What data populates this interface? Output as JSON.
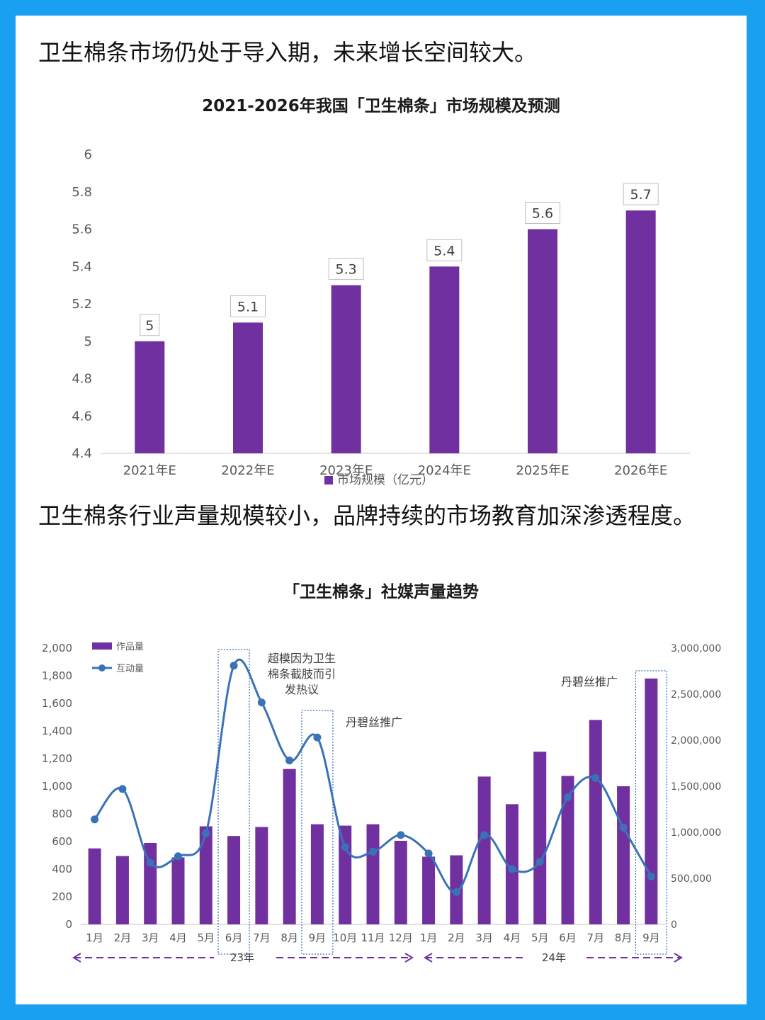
{
  "section1": {
    "heading": "卫生棉条市场仍处于导入期，未来增长空间较大。"
  },
  "section2": {
    "heading": "卫生棉条行业声量规模较小，品牌持续的市场教育加深渗透程度。"
  },
  "colors": {
    "bar": "#7030a0",
    "line": "#3a72b8",
    "frame": "#1aa0f0",
    "highlight": "#3a72b8"
  },
  "chart_data": [
    {
      "type": "bar",
      "title": "2021-2026年我国「卫生棉条」市场规模及预测",
      "categories": [
        "2021年E",
        "2022年E",
        "2023年E",
        "2024年E",
        "2025年E",
        "2026年E"
      ],
      "series": [
        {
          "name": "市场规模（亿元）",
          "values": [
            5,
            5.1,
            5.3,
            5.4,
            5.6,
            5.7
          ]
        }
      ],
      "value_labels": [
        "5",
        "5.1",
        "5.3",
        "5.4",
        "5.6",
        "5.7"
      ],
      "ylim": [
        4.4,
        6
      ],
      "yticks": [
        "4.4",
        "4.6",
        "4.8",
        "5",
        "5.2",
        "5.4",
        "5.6",
        "5.8",
        "6"
      ],
      "legend_position": "bottom",
      "grid": false
    },
    {
      "type": "bar+line",
      "title": "「卫生棉条」社媒声量趋势",
      "categories": [
        "1月",
        "2月",
        "3月",
        "4月",
        "5月",
        "6月",
        "7月",
        "8月",
        "9月",
        "10月",
        "11月",
        "12月",
        "1月",
        "2月",
        "3月",
        "4月",
        "5月",
        "6月",
        "7月",
        "8月",
        "9月"
      ],
      "series": [
        {
          "name": "作品量",
          "axis": "left",
          "values": [
            550,
            495,
            590,
            485,
            710,
            640,
            705,
            1125,
            725,
            715,
            725,
            605,
            490,
            500,
            1070,
            870,
            1250,
            1075,
            1480,
            1000,
            1780
          ]
        },
        {
          "name": "互动量",
          "axis": "right",
          "values": [
            1140000,
            1470000,
            670000,
            740000,
            990000,
            2810000,
            2410000,
            1780000,
            2030000,
            840000,
            790000,
            970000,
            770000,
            350000,
            970000,
            600000,
            680000,
            1380000,
            1590000,
            1050000,
            520000
          ]
        }
      ],
      "ylim_left": [
        0,
        2000
      ],
      "yticks_left": [
        "0",
        "200",
        "400",
        "600",
        "800",
        "1,000",
        "1,200",
        "1,400",
        "1,600",
        "1,800",
        "2,000"
      ],
      "ylim_right": [
        0,
        3000000
      ],
      "yticks_right": [
        "0",
        "500,000",
        "1,000,000",
        "1,500,000",
        "2,000,000",
        "2,500,000",
        "3,000,000"
      ],
      "year_labels": [
        "23年",
        "24年"
      ],
      "annotations": [
        {
          "text_lines": [
            "超模因为卫生",
            "棉条截肢而引",
            "发热议"
          ],
          "month_index": 5
        },
        {
          "text_lines": [
            "丹碧丝推广"
          ],
          "month_index": 8
        },
        {
          "text_lines": [
            "丹碧丝推广"
          ],
          "month_index": 20
        }
      ],
      "highlighted_months": [
        5,
        8,
        20
      ],
      "legend_position": "top-left",
      "grid": false
    }
  ]
}
